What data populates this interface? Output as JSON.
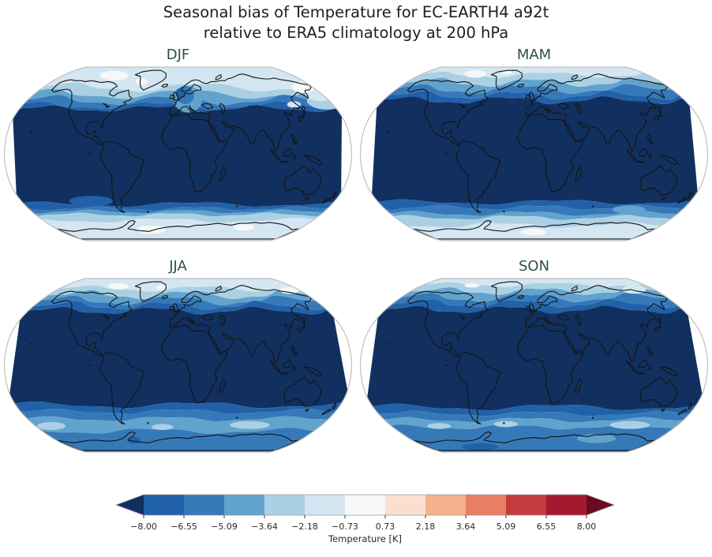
{
  "title": {
    "line1": "Seasonal bias of Temperature for EC-EARTH4 a92t",
    "line2": "relative to ERA5 climatology at 200 hPa"
  },
  "styles": {
    "background": "#ffffff",
    "title_color": "#1e1e1e",
    "panel_title_color": "#2f4f4f",
    "coast_color": "#141414",
    "map_outline_color": "#bfbfbf",
    "tick_text_color": "#2b2b2b",
    "colorbar_edge_color": "#9a9a9a"
  },
  "colorbar": {
    "label": "Temperature [K]",
    "ticks": [
      "−8.00",
      "−6.55",
      "−5.09",
      "−3.64",
      "−2.18",
      "−0.73",
      "0.73",
      "2.18",
      "3.64",
      "5.09",
      "6.55",
      "8.00"
    ],
    "extend": "both"
  },
  "chart_data": {
    "type": "filled-contour-map",
    "projection": "Robinson",
    "variable": "Temperature bias",
    "units": "K",
    "model": "EC-EARTH4 a92t",
    "reference": "ERA5 climatology",
    "pressure_level": "200 hPa",
    "contour_levels": [
      -8.0,
      -6.55,
      -5.09,
      -3.64,
      -2.18,
      -0.73,
      0.73,
      2.18,
      3.64,
      5.09,
      6.55,
      8.0
    ],
    "colormap": {
      "name": "RdBu-discrete-11-with-extend",
      "colors": [
        "#11305f",
        "#2161a9",
        "#3579b9",
        "#62a3cd",
        "#abd0e4",
        "#d4e6f1",
        "#f6f7f7",
        "#fbdfce",
        "#f5b18b",
        "#e87e62",
        "#c33d3e",
        "#a31a2e",
        "#6b0a1e"
      ]
    },
    "panels": [
      {
        "label": "DJF",
        "bands": [
          {
            "to": 63,
            "level": 5,
            "amp": 4,
            "freq": 2,
            "ph": 0.5
          },
          {
            "to": 56,
            "level": 4,
            "amp": 4,
            "freq": 2,
            "ph": 1.2
          },
          {
            "to": 50,
            "level": 3,
            "amp": 4,
            "freq": 2.5,
            "ph": 2.0
          },
          {
            "to": 45,
            "level": 2,
            "amp": 3,
            "freq": 2.5,
            "ph": 2.6
          },
          {
            "to": 42,
            "level": 1,
            "amp": 2.5,
            "freq": 3,
            "ph": 3.1
          },
          {
            "to": -47,
            "level": 0,
            "amp": 2,
            "freq": 2,
            "ph": 1.0
          },
          {
            "to": -51,
            "level": 1,
            "amp": 1.5,
            "freq": 3,
            "ph": 0.3
          },
          {
            "to": -54,
            "level": 2,
            "amp": 1.5,
            "freq": 3,
            "ph": 1.1
          },
          {
            "to": -57,
            "level": 3,
            "amp": 1.5,
            "freq": 3,
            "ph": 1.9
          },
          {
            "to": -63,
            "level": 4,
            "amp": 2,
            "freq": 2,
            "ph": 2.4
          },
          {
            "to": -90,
            "level": 5,
            "amp": 0,
            "freq": 0,
            "ph": 0
          }
        ],
        "blobs": [
          {
            "lon": 178,
            "lat": 50,
            "rlon": 24,
            "rlat": 9,
            "level": 4
          },
          {
            "lon": 180,
            "lat": 57,
            "rlon": 20,
            "rlat": 8,
            "level": 5
          },
          {
            "lon": 168,
            "lat": 63,
            "rlon": 16,
            "rlat": 6,
            "level": 6
          },
          {
            "lon": -100,
            "lat": 76,
            "rlon": 22,
            "rlat": 6,
            "level": 6
          },
          {
            "lon": -52,
            "lat": 69,
            "rlon": 8,
            "rlat": 4,
            "level": 6
          },
          {
            "lon": 135,
            "lat": 46,
            "rlon": 8,
            "rlat": 3,
            "level": 5
          },
          {
            "lon": 12,
            "lat": 51,
            "rlon": 17,
            "rlat": 13,
            "level": 3
          },
          {
            "lon": 9,
            "lat": 55,
            "rlon": 11,
            "rlat": 9,
            "level": 2
          },
          {
            "lon": 3,
            "lat": 57,
            "rlon": 6,
            "rlat": 5,
            "level": 1
          },
          {
            "lon": -100,
            "lat": -44,
            "rlon": 25,
            "rlat": 5,
            "level": 1
          },
          {
            "lon": -40,
            "lat": -73,
            "rlon": 22,
            "rlat": 5,
            "level": 6
          },
          {
            "lon": 95,
            "lat": -70,
            "rlon": 15,
            "rlat": 4,
            "level": 6
          }
        ]
      },
      {
        "label": "MAM",
        "bands": [
          {
            "to": 77,
            "level": 5,
            "amp": 3,
            "freq": 2,
            "ph": 0.8
          },
          {
            "to": 68,
            "level": 4,
            "amp": 4,
            "freq": 2.5,
            "ph": 1.5
          },
          {
            "to": 61,
            "level": 3,
            "amp": 4,
            "freq": 2.5,
            "ph": 2.2
          },
          {
            "to": 55,
            "level": 2,
            "amp": 3.5,
            "freq": 3,
            "ph": 2.9
          },
          {
            "to": 50,
            "level": 1,
            "amp": 3,
            "freq": 3,
            "ph": 3.4
          },
          {
            "to": -45,
            "level": 0,
            "amp": 2,
            "freq": 2,
            "ph": 0.6
          },
          {
            "to": -50,
            "level": 1,
            "amp": 2,
            "freq": 3,
            "ph": 1.2
          },
          {
            "to": -56,
            "level": 2,
            "amp": 2,
            "freq": 2.5,
            "ph": 2.0
          },
          {
            "to": -60,
            "level": 3,
            "amp": 2,
            "freq": 2.5,
            "ph": 2.7
          },
          {
            "to": -68,
            "level": 4,
            "amp": 2.5,
            "freq": 2,
            "ph": 3.2
          },
          {
            "to": -90,
            "level": 5,
            "amp": 0,
            "freq": 0,
            "ph": 0
          }
        ],
        "blobs": [
          {
            "lon": -95,
            "lat": 78,
            "rlon": 18,
            "rlat": 5,
            "level": 6
          },
          {
            "lon": -45,
            "lat": 80,
            "rlon": 8,
            "rlat": 3,
            "level": 6
          },
          {
            "lon": 0,
            "lat": -76,
            "rlon": 20,
            "rlat": 4,
            "level": 6
          },
          {
            "lon": 115,
            "lat": -52,
            "rlon": 20,
            "rlat": 4,
            "level": 3
          }
        ]
      },
      {
        "label": "JJA",
        "bands": [
          {
            "to": 74,
            "level": 5,
            "amp": 3,
            "freq": 2,
            "ph": 0.2
          },
          {
            "to": 67,
            "level": 4,
            "amp": 4,
            "freq": 2.5,
            "ph": 1.0
          },
          {
            "to": 61,
            "level": 3,
            "amp": 4,
            "freq": 2.5,
            "ph": 1.8
          },
          {
            "to": 56,
            "level": 2,
            "amp": 3.5,
            "freq": 3,
            "ph": 2.5
          },
          {
            "to": 51,
            "level": 1,
            "amp": 3,
            "freq": 3,
            "ph": 3.0
          },
          {
            "to": -37,
            "level": 0,
            "amp": 2.5,
            "freq": 2,
            "ph": 0.9
          },
          {
            "to": -43,
            "level": 1,
            "amp": 2,
            "freq": 2.5,
            "ph": 1.5
          },
          {
            "to": -50,
            "level": 2,
            "amp": 2,
            "freq": 2.5,
            "ph": 2.2
          },
          {
            "to": -62,
            "level": 3,
            "amp": 2.5,
            "freq": 2,
            "ph": 2.8
          },
          {
            "to": -90,
            "level": 2,
            "amp": 0,
            "freq": 0,
            "ph": 0
          }
        ],
        "blobs": [
          {
            "lon": -95,
            "lat": 77,
            "rlon": 16,
            "rlat": 4,
            "level": 6
          },
          {
            "lon": 165,
            "lat": 72,
            "rlon": 14,
            "rlat": 4,
            "level": 6
          },
          {
            "lon": -25,
            "lat": 75,
            "rlon": 8,
            "rlat": 3,
            "level": 6
          },
          {
            "lon": 90,
            "lat": -56,
            "rlon": 25,
            "rlat": 4,
            "level": 4
          },
          {
            "lon": -160,
            "lat": -57,
            "rlon": 18,
            "rlat": 4,
            "level": 4
          },
          {
            "lon": -20,
            "lat": -58,
            "rlon": 14,
            "rlat": 3,
            "level": 4
          },
          {
            "lon": -65,
            "lat": -72,
            "rlon": 10,
            "rlat": 4,
            "level": 1
          }
        ]
      },
      {
        "label": "SON",
        "bands": [
          {
            "to": 79,
            "level": 5,
            "amp": 2.5,
            "freq": 2,
            "ph": 0.4
          },
          {
            "to": 71,
            "level": 4,
            "amp": 3.5,
            "freq": 2.5,
            "ph": 1.1
          },
          {
            "to": 64,
            "level": 3,
            "amp": 4,
            "freq": 2.5,
            "ph": 1.9
          },
          {
            "to": 58,
            "level": 2,
            "amp": 3.5,
            "freq": 3,
            "ph": 2.6
          },
          {
            "to": 52,
            "level": 1,
            "amp": 3,
            "freq": 3,
            "ph": 3.2
          },
          {
            "to": -39,
            "level": 0,
            "amp": 2.5,
            "freq": 2,
            "ph": 0.7
          },
          {
            "to": -45,
            "level": 1,
            "amp": 2,
            "freq": 2.5,
            "ph": 1.4
          },
          {
            "to": -51,
            "level": 2,
            "amp": 2,
            "freq": 2.5,
            "ph": 2.1
          },
          {
            "to": -58,
            "level": 3,
            "amp": 2,
            "freq": 2.5,
            "ph": 2.8
          },
          {
            "to": -90,
            "level": 2,
            "amp": 0,
            "freq": 0,
            "ph": 0
          }
        ],
        "blobs": [
          {
            "lon": 150,
            "lat": 73,
            "rlon": 18,
            "rlat": 5,
            "level": 5
          },
          {
            "lon": -100,
            "lat": 78,
            "rlon": 12,
            "rlat": 3,
            "level": 6
          },
          {
            "lon": 120,
            "lat": -56,
            "rlon": 25,
            "rlat": 4,
            "level": 4
          },
          {
            "lon": -35,
            "lat": -55,
            "rlon": 15,
            "rlat": 3,
            "level": 4
          },
          {
            "lon": -120,
            "lat": -57,
            "rlon": 15,
            "rlat": 3,
            "level": 4
          },
          {
            "lon": 90,
            "lat": -70,
            "rlon": 28,
            "rlat": 5,
            "level": 3
          },
          {
            "lon": -90,
            "lat": -80,
            "rlon": 30,
            "rlat": 5,
            "level": 1
          }
        ]
      }
    ]
  }
}
